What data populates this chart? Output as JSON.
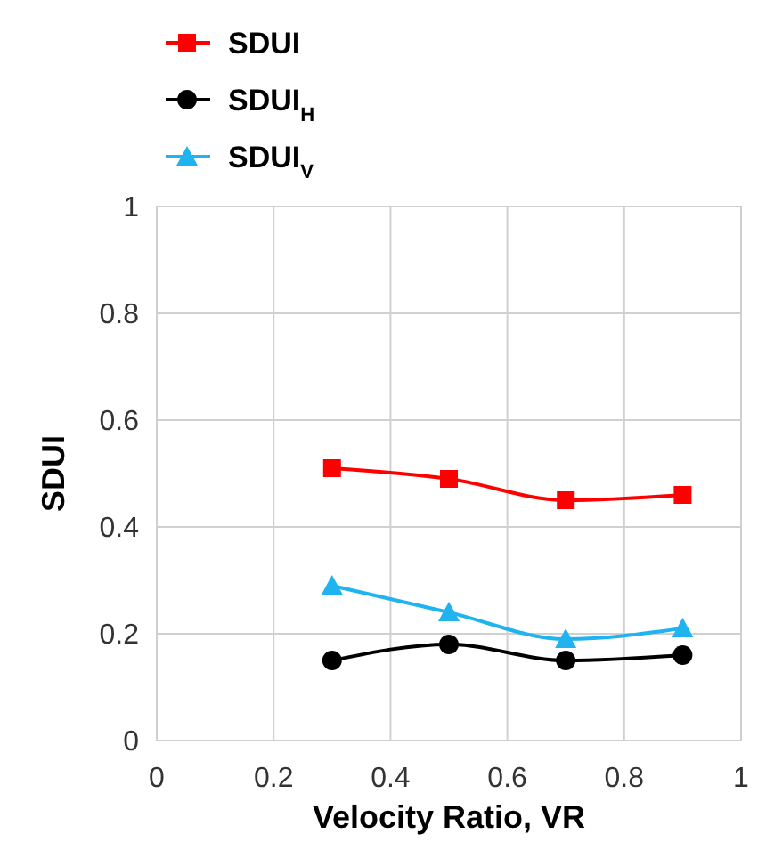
{
  "chart_data": {
    "type": "line",
    "xlabel": "Velocity Ratio, VR",
    "ylabel": "SDUI",
    "x": [
      0.3,
      0.5,
      0.7,
      0.9
    ],
    "series": [
      {
        "name": "SDUI",
        "color": "#ff0000",
        "marker": "square",
        "values": [
          0.51,
          0.49,
          0.45,
          0.46
        ]
      },
      {
        "name": "SDUI$_{H}$",
        "color": "#000000",
        "marker": "circle",
        "values": [
          0.15,
          0.18,
          0.15,
          0.16
        ]
      },
      {
        "name": "SDUI$_{V}$",
        "color": "#1fb4f0",
        "marker": "triangle",
        "values": [
          0.29,
          0.24,
          0.19,
          0.21
        ]
      }
    ],
    "xlim": [
      0,
      1
    ],
    "xticks": [
      0,
      0.2,
      0.4,
      0.6,
      0.8,
      1
    ],
    "ylim": [
      0,
      1
    ],
    "yticks": [
      0,
      0.2,
      0.4,
      0.6,
      0.8,
      1
    ],
    "grid": true,
    "legend": "top left"
  }
}
